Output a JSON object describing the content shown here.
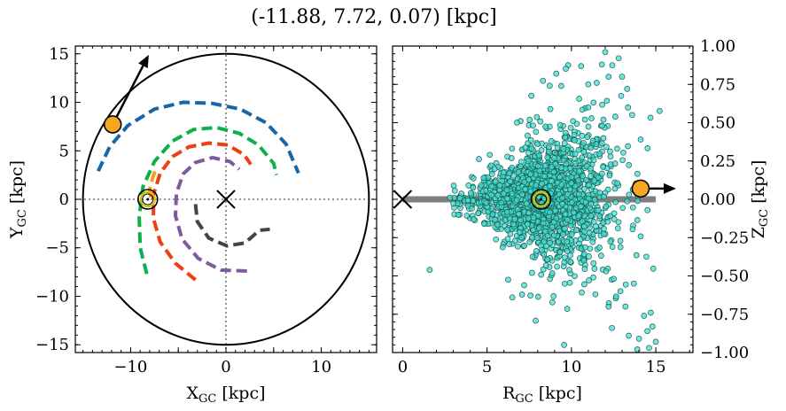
{
  "title": "(-11.88, 7.72, 0.07) [kpc]",
  "chart_data": [
    {
      "type": "scatter",
      "panel": "left",
      "xlabel_main": "X",
      "xlabel_sub": "GC",
      "xlabel_tail": " [kpc]",
      "ylabel_main": "Y",
      "ylabel_sub": "GC",
      "ylabel_tail": " [kpc]",
      "xlim": [
        -15.8,
        15.8
      ],
      "ylim": [
        -15.8,
        15.8
      ],
      "xticks": [
        -10,
        -5,
        0,
        5,
        10
      ],
      "xtick_labels": [
        "−10",
        "",
        "0",
        "",
        "10"
      ],
      "yticks": [
        -15,
        -10,
        -5,
        0,
        5,
        10,
        15
      ],
      "ytick_labels": [
        "−15",
        "−10",
        "−5",
        "0",
        "5",
        "10",
        "15"
      ],
      "boundary_circle_radius": 15,
      "crosshair_lines": "dotted at x=0 and y=0",
      "galactic_center_marker": {
        "x": 0,
        "y": 0,
        "symbol": "x"
      },
      "sun_marker": {
        "x": -8.2,
        "y": 0
      },
      "object_marker": {
        "x": -11.88,
        "y": 7.72,
        "color": "#f5a623"
      },
      "velocity_arrow": {
        "from": [
          -11.88,
          7.72
        ],
        "to": [
          -8.1,
          14.9
        ]
      },
      "spiral_arms": [
        {
          "color": "#1666a8",
          "points": [
            [
              -13.4,
              2.9
            ],
            [
              -12.2,
              5.4
            ],
            [
              -10.3,
              7.6
            ],
            [
              -7.5,
              9.3
            ],
            [
              -4.5,
              10.0
            ],
            [
              -1.5,
              9.9
            ],
            [
              1.5,
              9.3
            ],
            [
              4.2,
              7.9
            ],
            [
              6.3,
              5.7
            ],
            [
              7.6,
              2.7
            ]
          ]
        },
        {
          "color": "#0db14b",
          "points": [
            [
              -8.3,
              -7.7
            ],
            [
              -9.0,
              -5.0
            ],
            [
              -9.1,
              -1.8
            ],
            [
              -8.7,
              1.3
            ],
            [
              -7.5,
              3.9
            ],
            [
              -5.6,
              6.0
            ],
            [
              -3.4,
              7.2
            ],
            [
              -1.0,
              7.4
            ],
            [
              1.4,
              6.8
            ],
            [
              3.4,
              5.6
            ],
            [
              5.0,
              3.7
            ],
            [
              5.3,
              2.5
            ]
          ]
        },
        {
          "color": "#f59e16",
          "points": [
            [
              -7.9,
              0.2
            ],
            [
              -8.0,
              1.0
            ],
            [
              -7.7,
              2.2
            ],
            [
              -7.3,
              3.3
            ]
          ]
        },
        {
          "color": "#ef3d14",
          "points": [
            [
              -3.2,
              -8.3
            ],
            [
              -5.3,
              -6.6
            ],
            [
              -6.9,
              -4.4
            ],
            [
              -7.6,
              -2.0
            ],
            [
              -7.6,
              0.5
            ],
            [
              -6.9,
              2.7
            ],
            [
              -5.6,
              4.4
            ],
            [
              -3.9,
              5.4
            ],
            [
              -1.8,
              5.8
            ],
            [
              0.2,
              5.6
            ],
            [
              1.9,
              4.6
            ],
            [
              2.6,
              3.6
            ]
          ]
        },
        {
          "color": "#7e5b9c",
          "points": [
            [
              2.2,
              -7.4
            ],
            [
              -0.5,
              -7.3
            ],
            [
              -2.9,
              -6.1
            ],
            [
              -4.6,
              -4.1
            ],
            [
              -5.3,
              -1.7
            ],
            [
              -5.2,
              0.6
            ],
            [
              -4.5,
              2.6
            ],
            [
              -3.2,
              3.8
            ],
            [
              -1.4,
              4.3
            ],
            [
              0.4,
              3.9
            ],
            [
              1.4,
              3.1
            ]
          ]
        },
        {
          "color": "#444444",
          "points": [
            [
              -3.2,
              -0.5
            ],
            [
              -3.0,
              -2.3
            ],
            [
              -1.8,
              -4.0
            ],
            [
              0.1,
              -4.8
            ],
            [
              2.0,
              -4.5
            ],
            [
              3.5,
              -3.2
            ],
            [
              4.6,
              -3.1
            ]
          ]
        }
      ]
    },
    {
      "type": "scatter",
      "panel": "right",
      "xlabel_main": "R",
      "xlabel_sub": "GC",
      "xlabel_tail": " [kpc]",
      "ylabel_main": "Z",
      "ylabel_sub": "GC",
      "ylabel_tail": " [kpc]",
      "xlim": [
        -0.6,
        17.2
      ],
      "ylim": [
        -1.0,
        1.0
      ],
      "xticks": [
        0,
        5,
        10,
        15
      ],
      "xtick_labels": [
        "0",
        "5",
        "10",
        "15"
      ],
      "yticks": [
        -1.0,
        -0.75,
        -0.5,
        -0.25,
        0.0,
        0.25,
        0.5,
        0.75,
        1.0
      ],
      "ytick_labels": [
        "−1.00",
        "−0.75",
        "−0.50",
        "−0.25",
        "0.00",
        "0.25",
        "0.50",
        "0.75",
        "1.00"
      ],
      "disk_line": {
        "x": [
          0,
          15
        ],
        "y": 0,
        "color": "#808080"
      },
      "galactic_center_marker": {
        "x": 0,
        "y": 0,
        "symbol": "x"
      },
      "sun_marker": {
        "x": 8.2,
        "y": 0
      },
      "object_marker": {
        "x": 14.1,
        "y": 0.07,
        "color": "#f5a623"
      },
      "velocity_arrow": {
        "from": [
          14.1,
          0.07
        ],
        "to": [
          16.2,
          0.07
        ]
      },
      "star_color": "#40e0d0",
      "stars_outliers": [
        [
          1.6,
          -0.46
        ],
        [
          6.5,
          -0.64
        ],
        [
          12.0,
          0.96
        ],
        [
          12.8,
          0.92
        ],
        [
          11.8,
          0.88
        ],
        [
          13.3,
          0.72
        ],
        [
          9.1,
          0.82
        ],
        [
          9.4,
          0.74
        ],
        [
          11.5,
          0.76
        ],
        [
          13.0,
          0.8
        ],
        [
          12.2,
          0.8
        ],
        [
          14.7,
          -0.74
        ],
        [
          14.8,
          -0.83
        ],
        [
          14.0,
          -0.91
        ],
        [
          13.4,
          -0.89
        ],
        [
          12.4,
          -0.84
        ],
        [
          14.5,
          -0.86
        ],
        [
          15.0,
          -0.93
        ],
        [
          14.3,
          -0.76
        ],
        [
          12.2,
          -0.7
        ],
        [
          13.7,
          -0.55
        ],
        [
          12.9,
          -0.6
        ],
        [
          11.3,
          -0.51
        ],
        [
          13.9,
          -0.98
        ],
        [
          14.6,
          -0.97
        ],
        [
          13.2,
          -0.7
        ],
        [
          14.1,
          0.39
        ],
        [
          13.6,
          0.55
        ],
        [
          12.6,
          0.54
        ],
        [
          11.0,
          0.6
        ],
        [
          10.8,
          0.52
        ],
        [
          7.9,
          0.44
        ],
        [
          3.9,
          0.09
        ],
        [
          4.2,
          -0.13
        ],
        [
          2.8,
          0.01
        ],
        [
          4.8,
          0.14
        ]
      ]
    }
  ]
}
